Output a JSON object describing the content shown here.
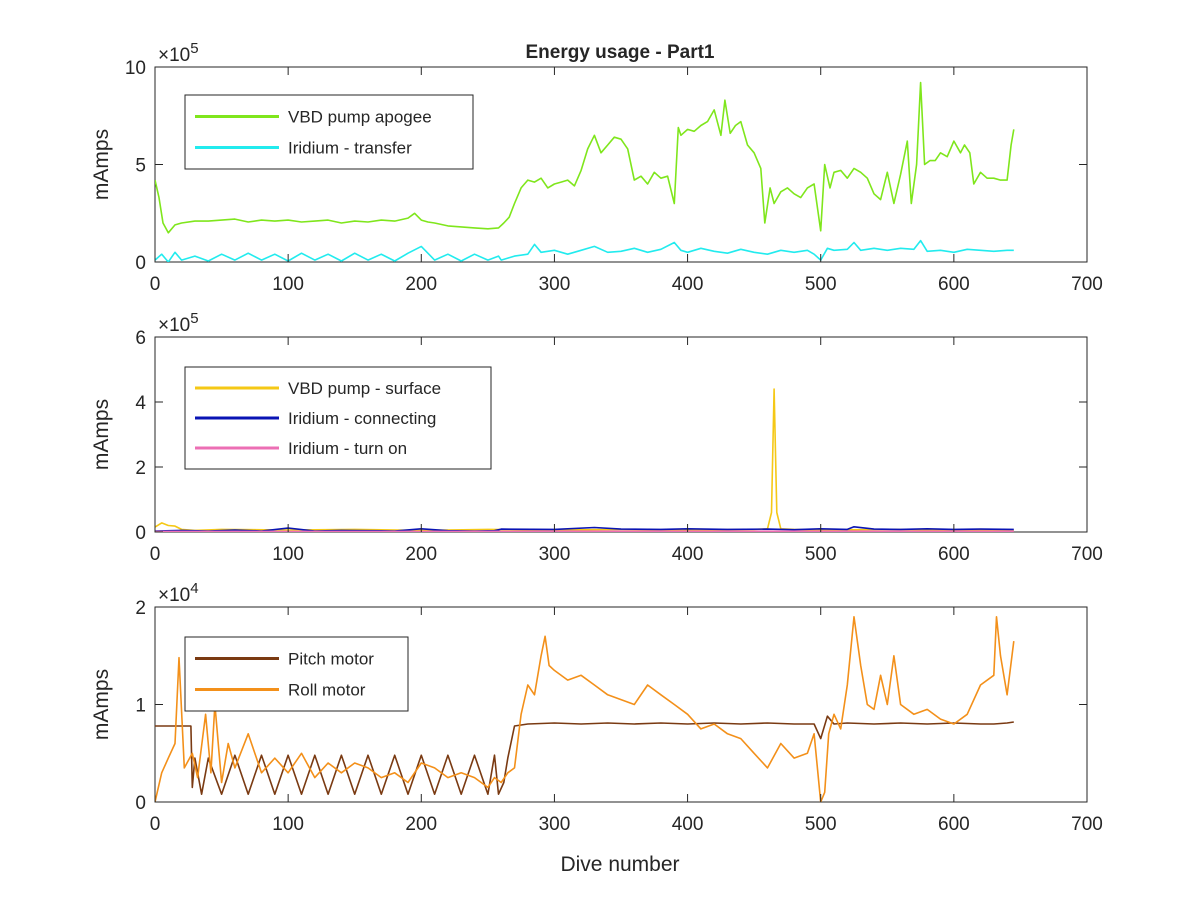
{
  "figure": {
    "title": "Energy usage - Part1",
    "xlabel": "Dive number"
  },
  "chart_data": [
    {
      "type": "line",
      "title": "Energy usage - Part1",
      "xlabel": "",
      "ylabel": "mAmps",
      "xlim": [
        0,
        700
      ],
      "ylim": [
        0,
        1000000
      ],
      "xticks": [
        0,
        100,
        200,
        300,
        400,
        500,
        600,
        700
      ],
      "xtick_labels": [
        "0",
        "100",
        "200",
        "300",
        "400",
        "500",
        "600",
        "700"
      ],
      "yticks": [
        0,
        500000,
        1000000
      ],
      "ytick_labels": [
        "0",
        "5",
        "10"
      ],
      "exponent_label": "×10",
      "exponent_power": "5",
      "legend_position": "top-left",
      "grid": false,
      "series": [
        {
          "name": "VBD pump apogee",
          "color": "#7fe61c",
          "x": [
            0,
            3,
            6,
            10,
            15,
            20,
            30,
            40,
            50,
            60,
            70,
            80,
            90,
            100,
            110,
            120,
            130,
            140,
            150,
            160,
            170,
            180,
            190,
            195,
            200,
            205,
            210,
            220,
            230,
            240,
            250,
            258,
            262,
            266,
            270,
            275,
            280,
            285,
            290,
            295,
            300,
            305,
            310,
            315,
            320,
            325,
            330,
            335,
            340,
            345,
            350,
            355,
            360,
            365,
            370,
            375,
            380,
            385,
            390,
            393,
            395,
            400,
            405,
            410,
            415,
            420,
            425,
            428,
            432,
            436,
            440,
            445,
            450,
            455,
            458,
            462,
            465,
            470,
            475,
            480,
            485,
            490,
            495,
            500,
            503,
            507,
            510,
            515,
            520,
            525,
            530,
            535,
            540,
            545,
            550,
            555,
            560,
            565,
            568,
            572,
            575,
            578,
            582,
            586,
            590,
            595,
            600,
            605,
            608,
            612,
            615,
            620,
            625,
            630,
            635,
            640,
            643,
            645
          ],
          "y": [
            420000,
            330000,
            200000,
            150000,
            190000,
            200000,
            210000,
            210000,
            215000,
            220000,
            205000,
            215000,
            210000,
            215000,
            205000,
            210000,
            215000,
            200000,
            210000,
            205000,
            215000,
            210000,
            225000,
            250000,
            215000,
            205000,
            200000,
            185000,
            180000,
            175000,
            170000,
            175000,
            200000,
            230000,
            300000,
            380000,
            420000,
            410000,
            430000,
            380000,
            400000,
            410000,
            420000,
            390000,
            470000,
            580000,
            650000,
            560000,
            600000,
            640000,
            630000,
            580000,
            420000,
            440000,
            400000,
            460000,
            430000,
            440000,
            300000,
            690000,
            650000,
            680000,
            670000,
            700000,
            720000,
            780000,
            650000,
            830000,
            660000,
            700000,
            720000,
            600000,
            560000,
            480000,
            200000,
            380000,
            300000,
            360000,
            380000,
            350000,
            330000,
            380000,
            400000,
            160000,
            500000,
            380000,
            460000,
            470000,
            430000,
            480000,
            460000,
            430000,
            350000,
            320000,
            460000,
            300000,
            450000,
            620000,
            300000,
            500000,
            920000,
            500000,
            520000,
            520000,
            560000,
            540000,
            620000,
            560000,
            600000,
            560000,
            400000,
            460000,
            430000,
            430000,
            420000,
            420000,
            600000,
            680000
          ]
        },
        {
          "name": "Iridium - transfer",
          "color": "#22ebee",
          "x": [
            0,
            5,
            10,
            15,
            20,
            30,
            40,
            50,
            60,
            70,
            80,
            90,
            100,
            110,
            120,
            130,
            140,
            150,
            160,
            170,
            180,
            190,
            200,
            210,
            220,
            230,
            240,
            250,
            258,
            260,
            265,
            270,
            280,
            285,
            290,
            300,
            310,
            320,
            330,
            340,
            350,
            360,
            370,
            380,
            390,
            395,
            400,
            410,
            420,
            430,
            440,
            450,
            460,
            470,
            480,
            490,
            495,
            500,
            505,
            510,
            520,
            525,
            530,
            540,
            550,
            560,
            570,
            575,
            580,
            590,
            600,
            610,
            620,
            630,
            640,
            645
          ],
          "y": [
            10000,
            40000,
            0,
            50000,
            10000,
            30000,
            5000,
            40000,
            10000,
            45000,
            10000,
            40000,
            5000,
            45000,
            10000,
            40000,
            5000,
            45000,
            10000,
            40000,
            5000,
            45000,
            80000,
            10000,
            40000,
            5000,
            40000,
            10000,
            30000,
            10000,
            20000,
            30000,
            40000,
            90000,
            50000,
            60000,
            40000,
            60000,
            80000,
            50000,
            55000,
            70000,
            50000,
            65000,
            100000,
            60000,
            50000,
            70000,
            55000,
            45000,
            65000,
            50000,
            40000,
            60000,
            50000,
            60000,
            40000,
            10000,
            70000,
            60000,
            65000,
            100000,
            60000,
            70000,
            60000,
            70000,
            65000,
            110000,
            55000,
            60000,
            50000,
            65000,
            60000,
            55000,
            60000,
            60000
          ]
        }
      ]
    },
    {
      "type": "line",
      "title": "",
      "xlabel": "",
      "ylabel": "mAmps",
      "xlim": [
        0,
        700
      ],
      "ylim": [
        0,
        600000
      ],
      "xticks": [
        0,
        100,
        200,
        300,
        400,
        500,
        600,
        700
      ],
      "xtick_labels": [
        "0",
        "100",
        "200",
        "300",
        "400",
        "500",
        "600",
        "700"
      ],
      "yticks": [
        0,
        200000,
        400000,
        600000
      ],
      "ytick_labels": [
        "0",
        "2",
        "4",
        "6"
      ],
      "exponent_label": "×10",
      "exponent_power": "5",
      "legend_position": "top-left",
      "grid": false,
      "series": [
        {
          "name": "VBD pump - surface",
          "color": "#f5c816",
          "x": [
            0,
            5,
            10,
            15,
            20,
            30,
            50,
            100,
            150,
            200,
            250,
            300,
            350,
            400,
            450,
            460,
            463,
            465,
            467,
            470,
            480,
            500,
            550,
            600,
            645
          ],
          "y": [
            15000,
            28000,
            20000,
            18000,
            8000,
            5000,
            8000,
            6000,
            8000,
            5000,
            8000,
            6000,
            8000,
            6000,
            8000,
            10000,
            60000,
            440000,
            60000,
            10000,
            8000,
            6000,
            8000,
            6000,
            5000
          ]
        },
        {
          "name": "Iridium - connecting",
          "color": "#0a14b4",
          "x": [
            0,
            20,
            40,
            60,
            80,
            100,
            120,
            140,
            160,
            180,
            200,
            220,
            240,
            255,
            260,
            300,
            330,
            350,
            380,
            400,
            430,
            460,
            480,
            500,
            520,
            525,
            540,
            560,
            580,
            600,
            620,
            645
          ],
          "y": [
            3000,
            5000,
            3000,
            6000,
            3000,
            12000,
            3000,
            5000,
            4000,
            3000,
            10000,
            4000,
            3000,
            4000,
            9000,
            8000,
            14000,
            9000,
            8000,
            10000,
            8000,
            9000,
            7000,
            10000,
            8000,
            16000,
            9000,
            8000,
            10000,
            8000,
            9000,
            8000
          ]
        },
        {
          "name": "Iridium - turn on",
          "color": "#ec6fb4",
          "x": [
            0,
            100,
            200,
            300,
            400,
            500,
            600,
            645
          ],
          "y": [
            2000,
            2000,
            2000,
            2500,
            2500,
            2500,
            2500,
            2500
          ]
        }
      ]
    },
    {
      "type": "line",
      "title": "",
      "xlabel": "Dive number",
      "ylabel": "mAmps",
      "xlim": [
        0,
        700
      ],
      "ylim": [
        0,
        20000
      ],
      "xticks": [
        0,
        100,
        200,
        300,
        400,
        500,
        600,
        700
      ],
      "xtick_labels": [
        "0",
        "100",
        "200",
        "300",
        "400",
        "500",
        "600",
        "700"
      ],
      "yticks": [
        0,
        10000,
        20000
      ],
      "ytick_labels": [
        "0",
        "1",
        "2"
      ],
      "exponent_label": "×10",
      "exponent_power": "4",
      "legend_position": "top-left",
      "grid": false,
      "series": [
        {
          "name": "Pitch motor",
          "color": "#7a3a12",
          "x": [
            0,
            10,
            20,
            27,
            28,
            30,
            35,
            40,
            50,
            60,
            70,
            80,
            90,
            100,
            110,
            120,
            130,
            140,
            150,
            160,
            170,
            180,
            190,
            200,
            210,
            220,
            230,
            240,
            250,
            255,
            258,
            262,
            265,
            270,
            280,
            300,
            320,
            340,
            360,
            380,
            400,
            420,
            440,
            460,
            480,
            495,
            500,
            505,
            510,
            520,
            540,
            560,
            580,
            600,
            620,
            630,
            640,
            645
          ],
          "y": [
            7800,
            7800,
            7800,
            7800,
            1500,
            4500,
            800,
            4500,
            800,
            4800,
            800,
            4800,
            800,
            4800,
            800,
            4800,
            800,
            4800,
            800,
            4800,
            800,
            4800,
            800,
            4800,
            800,
            4800,
            800,
            4800,
            800,
            4800,
            800,
            2000,
            4500,
            7800,
            8000,
            8100,
            8000,
            8100,
            8000,
            8100,
            8000,
            8100,
            8000,
            8100,
            8000,
            8000,
            6500,
            8800,
            8000,
            8100,
            8000,
            8100,
            8000,
            8100,
            8000,
            8000,
            8100,
            8200
          ]
        },
        {
          "name": "Roll motor",
          "color": "#f3901a",
          "x": [
            0,
            5,
            10,
            15,
            18,
            22,
            28,
            32,
            38,
            42,
            45,
            50,
            55,
            60,
            70,
            80,
            90,
            100,
            110,
            120,
            130,
            140,
            150,
            160,
            170,
            180,
            190,
            200,
            210,
            220,
            230,
            240,
            250,
            255,
            260,
            265,
            270,
            275,
            280,
            285,
            290,
            293,
            296,
            300,
            310,
            320,
            330,
            340,
            350,
            360,
            370,
            380,
            390,
            400,
            410,
            420,
            430,
            440,
            450,
            460,
            470,
            480,
            490,
            495,
            500,
            503,
            506,
            510,
            515,
            520,
            525,
            530,
            535,
            540,
            545,
            550,
            555,
            560,
            570,
            580,
            590,
            600,
            610,
            620,
            630,
            632,
            635,
            640,
            645
          ],
          "y": [
            0,
            3000,
            4500,
            6000,
            14800,
            3500,
            5000,
            2500,
            9000,
            3000,
            10000,
            2000,
            6000,
            3500,
            7000,
            3000,
            4500,
            3000,
            5000,
            2500,
            4000,
            3000,
            4000,
            3500,
            2500,
            3000,
            2000,
            4000,
            3500,
            2500,
            3000,
            2500,
            1500,
            2500,
            2000,
            3000,
            3500,
            9000,
            12000,
            11000,
            15000,
            17000,
            14000,
            13500,
            12500,
            13000,
            12000,
            11000,
            10500,
            10000,
            12000,
            11000,
            10000,
            9000,
            7500,
            8000,
            7000,
            6500,
            5000,
            3500,
            6000,
            4500,
            5000,
            7000,
            0,
            1000,
            7000,
            9000,
            7500,
            12000,
            19000,
            14000,
            10000,
            9500,
            13000,
            10000,
            15000,
            10000,
            9000,
            9500,
            8500,
            8000,
            9000,
            12000,
            13000,
            19000,
            15000,
            11000,
            16500
          ]
        }
      ]
    }
  ]
}
